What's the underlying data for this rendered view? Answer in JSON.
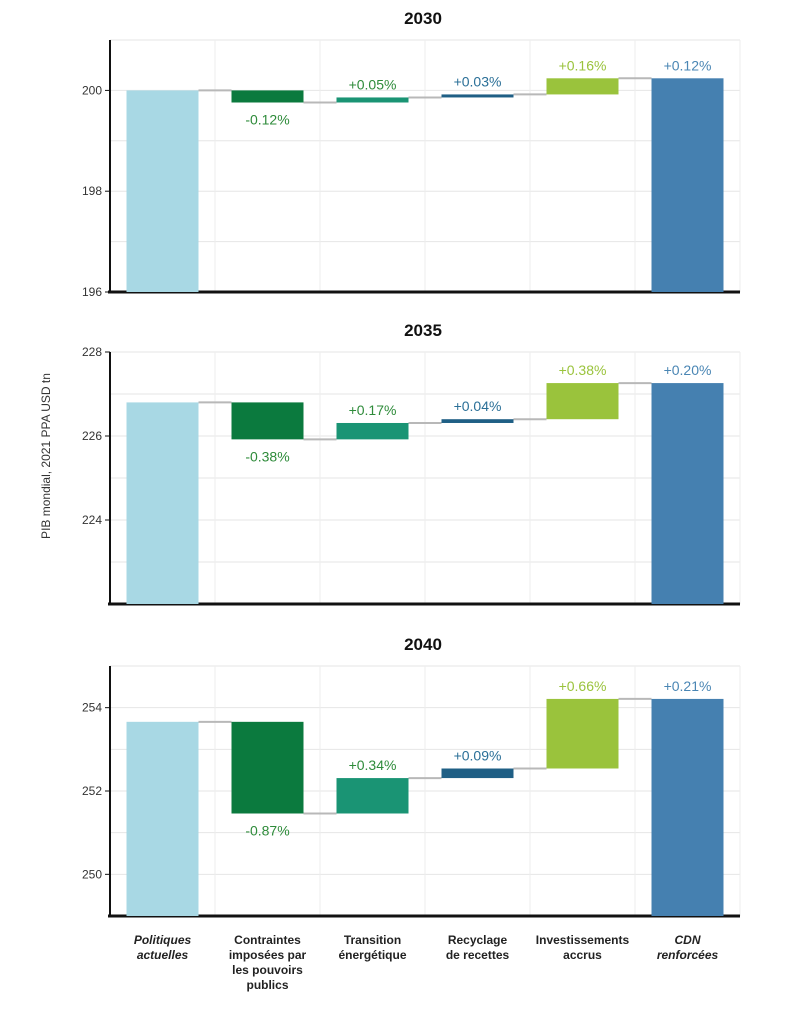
{
  "chart_data": {
    "type": "bar",
    "subtype": "waterfall",
    "ylabel": "PIB mondial, 2021 PPA USD tn",
    "categories": [
      {
        "lines": [
          "Politiques",
          "actuelles"
        ],
        "italic": true
      },
      {
        "lines": [
          "Contraintes",
          "imposées par",
          "les pouvoirs",
          "publics"
        ],
        "italic": false
      },
      {
        "lines": [
          "Transition",
          "énergétique"
        ],
        "italic": false
      },
      {
        "lines": [
          "Recyclage",
          "de recettes"
        ],
        "italic": false
      },
      {
        "lines": [
          "Investissements",
          "accrus"
        ],
        "italic": false
      },
      {
        "lines": [
          "CDN",
          "renforcées"
        ],
        "italic": true
      }
    ],
    "bar_colors": [
      "#a8d8e4",
      "#0b7a3e",
      "#1a9474",
      "#1f5f85",
      "#9ac33c",
      "#4580b0"
    ],
    "label_colors": [
      "#000000",
      "#2e8b3a",
      "#2e8b3a",
      "#2a6f97",
      "#9ac33c",
      "#4a86b4"
    ],
    "grid": true,
    "panels": [
      {
        "title": "2030",
        "ylim": [
          196,
          201
        ],
        "yticks": [
          "196",
          "198",
          "200"
        ],
        "tick_values": [
          196,
          198,
          200
        ],
        "base": 200.0,
        "steps": [
          -0.24,
          0.1,
          0.06,
          0.32
        ],
        "final": 200.24,
        "labels": [
          "",
          "-0.12%",
          "+0.05%",
          "+0.03%",
          "+0.16%",
          "+0.12%"
        ]
      },
      {
        "title": "2035",
        "ylim": [
          222,
          228
        ],
        "yticks": [
          "224",
          "226",
          "228"
        ],
        "tick_values": [
          224,
          226,
          228
        ],
        "base": 226.8,
        "steps": [
          -0.88,
          0.39,
          0.09,
          0.86
        ],
        "final": 227.26,
        "labels": [
          "",
          "-0.38%",
          "+0.17%",
          "+0.04%",
          "+0.38%",
          "+0.20%"
        ]
      },
      {
        "title": "2040",
        "ylim": [
          249,
          255
        ],
        "yticks": [
          "250",
          "252",
          "254"
        ],
        "tick_values": [
          250,
          252,
          254
        ],
        "base": 253.66,
        "steps": [
          -2.2,
          0.85,
          0.23,
          1.67
        ],
        "final": 254.21,
        "labels": [
          "",
          "-0.87%",
          "+0.34%",
          "+0.09%",
          "+0.66%",
          "+0.21%"
        ]
      }
    ]
  }
}
